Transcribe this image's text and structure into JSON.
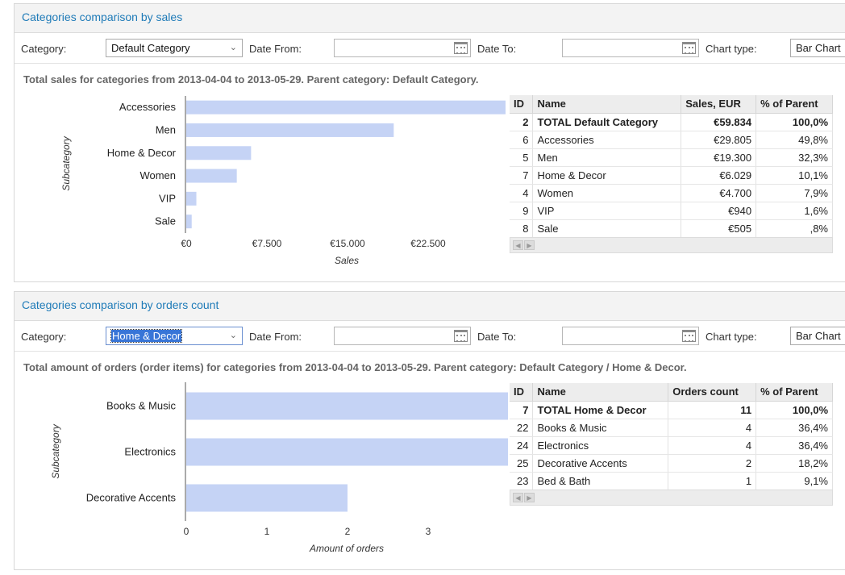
{
  "sales_panel": {
    "title": "Categories comparison by sales",
    "toolbar": {
      "category_label": "Category:",
      "category_value": "Default Category",
      "date_from_label": "Date From:",
      "date_from_value": "",
      "date_to_label": "Date To:",
      "date_to_value": "",
      "chart_type_label": "Chart type:",
      "chart_type_value": "Bar Chart"
    },
    "subtitle": "Total sales for categories from 2013-04-04 to 2013-05-29. Parent category: Default Category.",
    "table": {
      "headers": [
        "ID",
        "Name",
        "Sales, EUR",
        "% of Parent"
      ],
      "rows": [
        {
          "id": "2",
          "name": "TOTAL Default Category",
          "value": "€59.834",
          "pct": "100,0%"
        },
        {
          "id": "6",
          "name": "Accessories",
          "value": "€29.805",
          "pct": "49,8%"
        },
        {
          "id": "5",
          "name": "Men",
          "value": "€19.300",
          "pct": "32,3%"
        },
        {
          "id": "7",
          "name": "Home & Decor",
          "value": "€6.029",
          "pct": "10,1%"
        },
        {
          "id": "4",
          "name": "Women",
          "value": "€4.700",
          "pct": "7,9%"
        },
        {
          "id": "9",
          "name": "VIP",
          "value": "€940",
          "pct": "1,6%"
        },
        {
          "id": "8",
          "name": "Sale",
          "value": "€505",
          "pct": ",8%"
        }
      ]
    }
  },
  "orders_panel": {
    "title": "Categories comparison by orders count",
    "toolbar": {
      "category_label": "Category:",
      "category_value": "Home & Decor",
      "date_from_label": "Date From:",
      "date_from_value": "",
      "date_to_label": "Date To:",
      "date_to_value": "",
      "chart_type_label": "Chart type:",
      "chart_type_value": "Bar Chart"
    },
    "subtitle": "Total amount of orders (order items) for categories from 2013-04-04 to 2013-05-29. Parent category: Default Category / Home & Decor.",
    "table": {
      "headers": [
        "ID",
        "Name",
        "Orders count",
        "% of Parent"
      ],
      "rows": [
        {
          "id": "7",
          "name": "TOTAL Home & Decor",
          "value": "11",
          "pct": "100,0%"
        },
        {
          "id": "22",
          "name": "Books & Music",
          "value": "4",
          "pct": "36,4%"
        },
        {
          "id": "24",
          "name": "Electronics",
          "value": "4",
          "pct": "36,4%"
        },
        {
          "id": "25",
          "name": "Decorative Accents",
          "value": "2",
          "pct": "18,2%"
        },
        {
          "id": "23",
          "name": "Bed & Bath",
          "value": "1",
          "pct": "9,1%"
        }
      ]
    }
  },
  "colors": {
    "bar": "#c5d3f5",
    "title": "#1f7bb8",
    "selection": "#3875d7"
  },
  "icons": [
    "calendar-icon",
    "chevron-down-icon",
    "scroll-left-icon",
    "scroll-right-icon"
  ],
  "chart_data": [
    {
      "type": "bar",
      "orientation": "horizontal",
      "categories": [
        "Accessories",
        "Men",
        "Home & Decor",
        "Women",
        "VIP",
        "Sale"
      ],
      "values": [
        29805,
        19300,
        6029,
        4700,
        940,
        505
      ],
      "xlabel": "Sales",
      "ylabel": "Subcategory",
      "xlim": [
        0,
        30000
      ],
      "ticks": [
        0,
        7500,
        15000,
        22500
      ],
      "tick_labels": [
        "€0",
        "€7.500",
        "€15.000",
        "€22.500"
      ],
      "grid": false,
      "legend": "none"
    },
    {
      "type": "bar",
      "orientation": "horizontal",
      "categories": [
        "Books & Music",
        "Electronics",
        "Decorative Accents"
      ],
      "values": [
        4,
        4,
        2
      ],
      "xlabel": "Amount of orders",
      "ylabel": "Subcategory",
      "xlim": [
        0,
        4
      ],
      "ticks": [
        0,
        1,
        2,
        3
      ],
      "tick_labels": [
        "0",
        "1",
        "2",
        "3"
      ],
      "grid": false,
      "legend": "none"
    }
  ]
}
